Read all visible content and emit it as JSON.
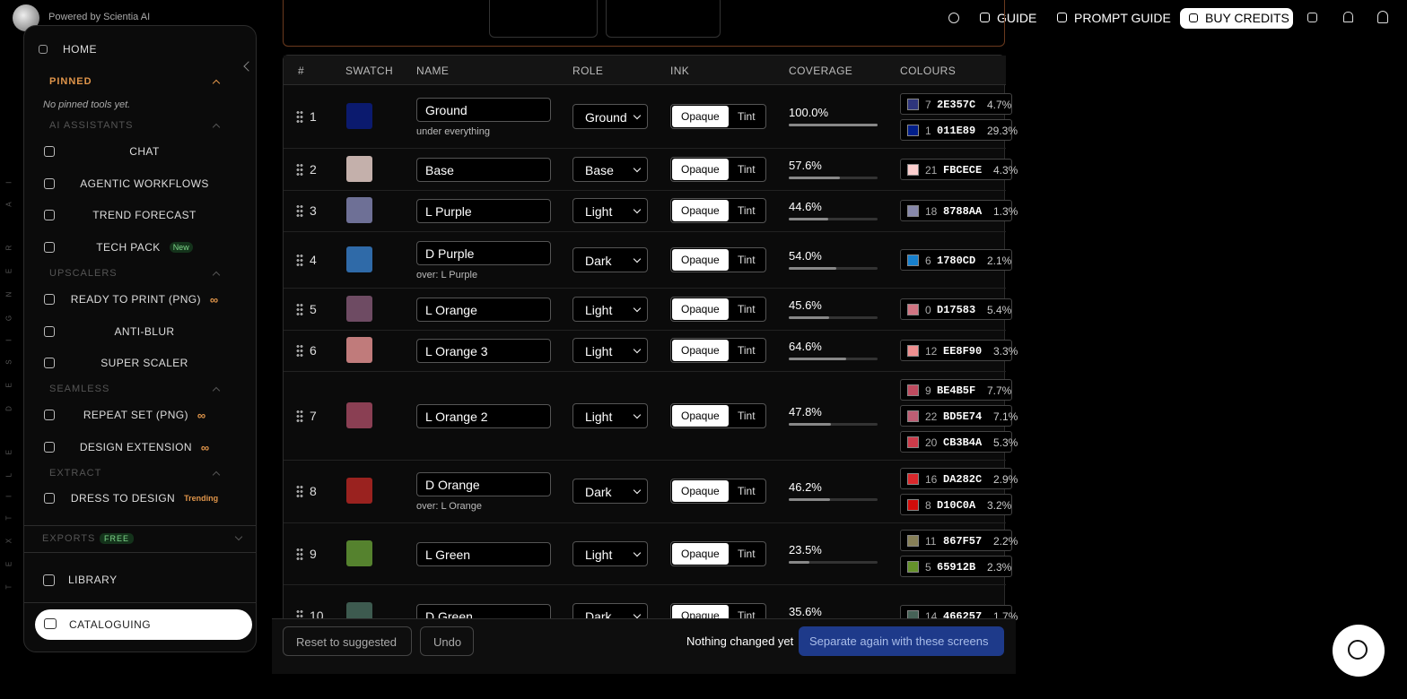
{
  "header": {
    "powered_by": "Powered by Scientia AI",
    "nav": [
      "GUIDE",
      "PROMPT GUIDE",
      "BUY CREDITS"
    ]
  },
  "side_label": "TEXTILE DESIGNER AI",
  "sidebar": {
    "home": "HOME",
    "pinned": {
      "title": "PINNED",
      "note": "No pinned tools yet."
    },
    "groups": [
      {
        "title": "AI ASSISTANTS",
        "items": [
          {
            "label": "CHAT"
          },
          {
            "label": "AGENTIC WORKFLOWS"
          },
          {
            "label": "TREND FORECAST"
          },
          {
            "label": "TECH PACK",
            "badge": "New"
          }
        ]
      },
      {
        "title": "UPSCALERS",
        "items": [
          {
            "label": "READY TO PRINT (PNG)",
            "badge": "∞"
          },
          {
            "label": "ANTI-BLUR"
          },
          {
            "label": "SUPER SCALER"
          }
        ]
      },
      {
        "title": "SEAMLESS",
        "items": [
          {
            "label": "REPEAT SET (PNG)",
            "badge": "∞"
          },
          {
            "label": "DESIGN EXTENSION",
            "badge": "∞"
          }
        ]
      },
      {
        "title": "EXTRACT",
        "items": [
          {
            "label": "DRESS TO DESIGN",
            "badge": "Trending"
          }
        ]
      }
    ],
    "exports": {
      "label": "EXPORTS",
      "badge": "FREE"
    },
    "library": "LIBRARY",
    "cataloguing": "CATALOGUING"
  },
  "table": {
    "headers": [
      "#",
      "SWATCH",
      "NAME",
      "ROLE",
      "INK",
      "COVERAGE",
      "COLOURS"
    ],
    "ink_options": [
      "Opaque",
      "Tint"
    ],
    "rows": [
      {
        "num": "1",
        "swatch": "#0b1a6e",
        "name": "Ground",
        "note": "under everything",
        "role": "Ground",
        "coverage": {
          "value": 100.0,
          "label": "100.0%"
        },
        "colours": [
          {
            "index": "7",
            "hex": "2E357C",
            "pct": "4.7%"
          },
          {
            "index": "1",
            "hex": "011E89",
            "pct": "29.3%"
          }
        ]
      },
      {
        "num": "2",
        "swatch": "#c4b0ab",
        "name": "Base",
        "role": "Base",
        "coverage": {
          "value": 57.6,
          "label": "57.6%"
        },
        "colours": [
          {
            "index": "21",
            "hex": "FBCECE",
            "pct": "4.3%"
          }
        ]
      },
      {
        "num": "3",
        "swatch": "#6e7096",
        "name": "L Purple",
        "role": "Light",
        "coverage": {
          "value": 44.6,
          "label": "44.6%"
        },
        "colours": [
          {
            "index": "18",
            "hex": "8788AA",
            "pct": "1.3%"
          }
        ]
      },
      {
        "num": "4",
        "swatch": "#2f6aa8",
        "name": "D Purple",
        "note": "over: L Purple",
        "role": "Dark",
        "coverage": {
          "value": 54.0,
          "label": "54.0%"
        },
        "colours": [
          {
            "index": "6",
            "hex": "1780CD",
            "pct": "2.1%"
          }
        ]
      },
      {
        "num": "5",
        "swatch": "#6e4b63",
        "name": "L Orange",
        "role": "Light",
        "coverage": {
          "value": 45.6,
          "label": "45.6%"
        },
        "colours": [
          {
            "index": "0",
            "hex": "D17583",
            "pct": "5.4%"
          }
        ]
      },
      {
        "num": "6",
        "swatch": "#c07b7b",
        "name": "L Orange 3",
        "role": "Light",
        "coverage": {
          "value": 64.6,
          "label": "64.6%"
        },
        "colours": [
          {
            "index": "12",
            "hex": "EE8F90",
            "pct": "3.3%"
          }
        ]
      },
      {
        "num": "7",
        "swatch": "#8a3f53",
        "name": "L Orange 2",
        "role": "Light",
        "coverage": {
          "value": 47.8,
          "label": "47.8%"
        },
        "colours": [
          {
            "index": "9",
            "hex": "BE4B5F",
            "pct": "7.7%"
          },
          {
            "index": "22",
            "hex": "BD5E74",
            "pct": "7.1%"
          },
          {
            "index": "20",
            "hex": "CB3B4A",
            "pct": "5.3%"
          }
        ]
      },
      {
        "num": "8",
        "swatch": "#9a221f",
        "name": "D Orange",
        "note": "over: L Orange",
        "role": "Dark",
        "coverage": {
          "value": 46.2,
          "label": "46.2%"
        },
        "colours": [
          {
            "index": "16",
            "hex": "DA282C",
            "pct": "2.9%"
          },
          {
            "index": "8",
            "hex": "D10C0A",
            "pct": "3.2%"
          }
        ]
      },
      {
        "num": "9",
        "swatch": "#55822e",
        "name": "L Green",
        "role": "Light",
        "coverage": {
          "value": 23.5,
          "label": "23.5%"
        },
        "colours": [
          {
            "index": "11",
            "hex": "867F57",
            "pct": "2.2%"
          },
          {
            "index": "5",
            "hex": "65912B",
            "pct": "2.3%"
          }
        ]
      },
      {
        "num": "10",
        "swatch": "#3d5a4f",
        "name": "D Green",
        "role": "Dark",
        "coverage": {
          "value": 35.6,
          "label": "35.6%"
        },
        "colours": [
          {
            "index": "14",
            "hex": "466257",
            "pct": "1.7%"
          }
        ]
      }
    ]
  },
  "footer": {
    "reset": "Reset to suggested",
    "undo": "Undo",
    "status": "Nothing changed yet",
    "submit": "Separate again with these screens"
  }
}
